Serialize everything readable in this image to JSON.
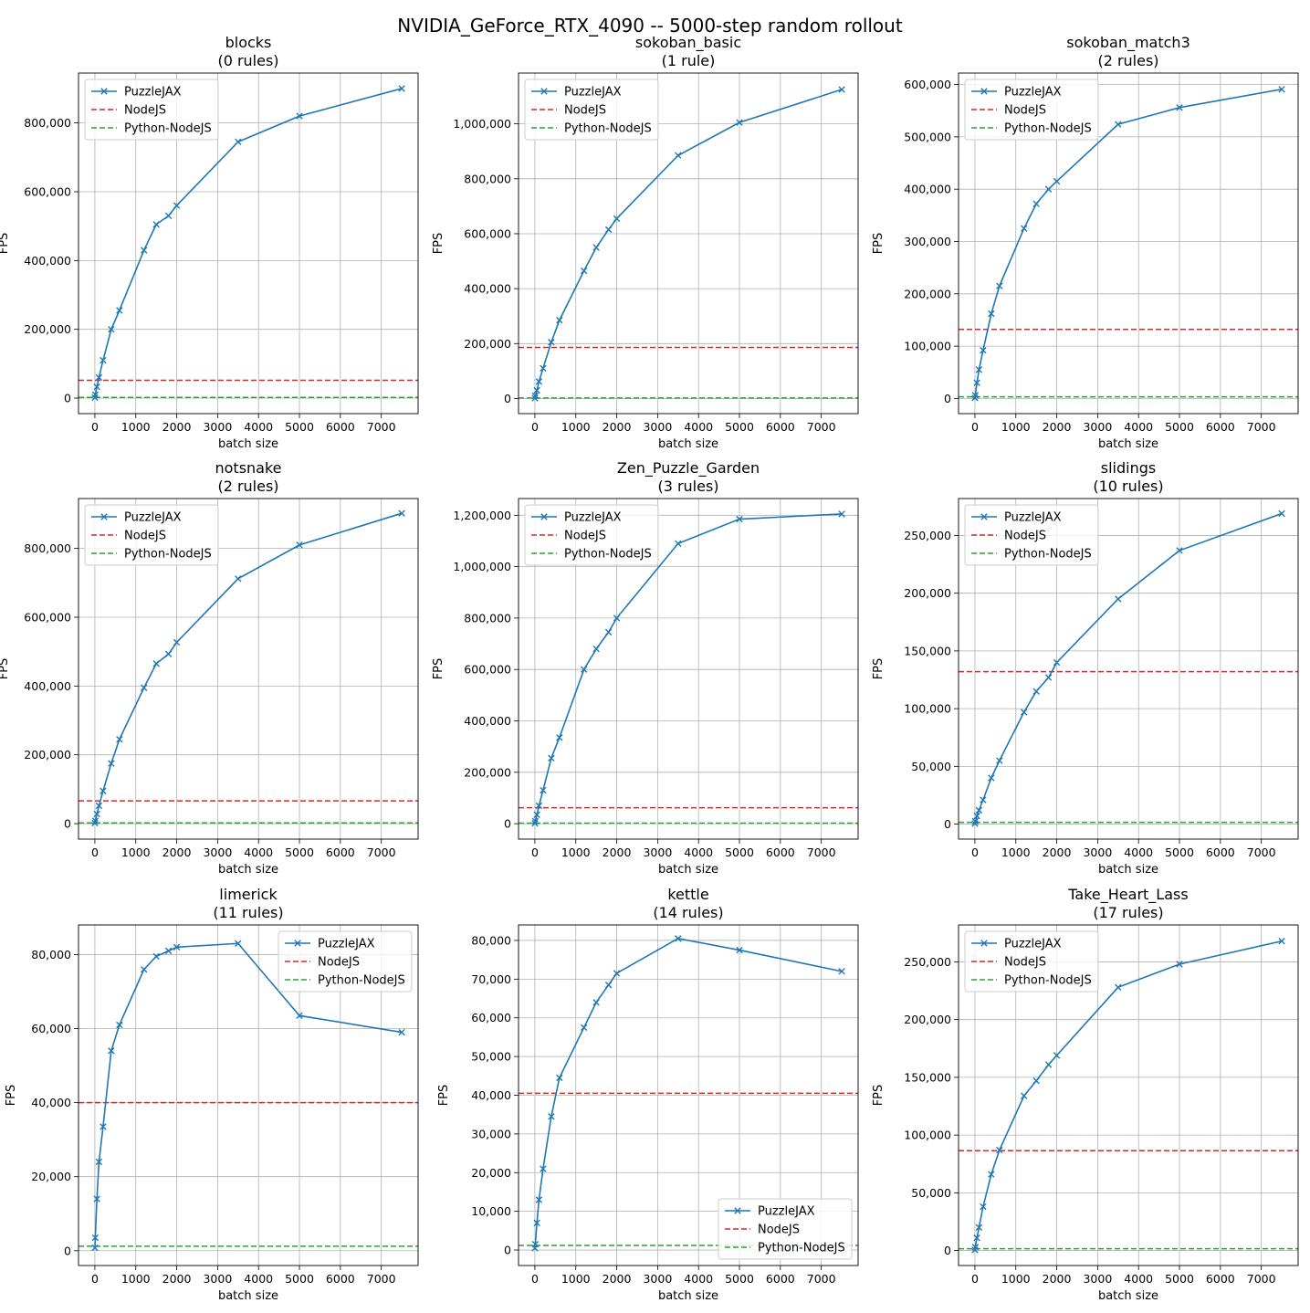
{
  "suptitle": "NVIDIA_GeForce_RTX_4090 -- 5000-step random rollout",
  "colors": {
    "puzzlejax": "#1f77b4",
    "nodejs": "#d62728",
    "python_nodejs": "#2ca02c",
    "grid": "#b0b0b0"
  },
  "chart_data": [
    {
      "type": "line",
      "title": "blocks",
      "subtitle": "(0 rules)",
      "xlabel": "batch size",
      "ylabel": "FPS",
      "xlim": [
        -400,
        7900
      ],
      "xticks": [
        0,
        1000,
        2000,
        3000,
        4000,
        5000,
        6000,
        7000
      ],
      "xtick_labels": [
        "0",
        "1000",
        "2000",
        "3000",
        "4000",
        "5000",
        "6000",
        "7000"
      ],
      "ylim": [
        -45000,
        945000
      ],
      "yticks": [
        0,
        200000,
        400000,
        600000,
        800000
      ],
      "ytick_labels": [
        "0",
        "200,000",
        "400,000",
        "600,000",
        "800,000"
      ],
      "legend": {
        "placement": "top-left",
        "entries": [
          "PuzzleJAX",
          "NodeJS",
          "Python-NodeJS"
        ]
      },
      "x": [
        1,
        10,
        50,
        100,
        200,
        400,
        600,
        1200,
        1500,
        1800,
        2000,
        3500,
        5000,
        7500
      ],
      "series": [
        {
          "name": "PuzzleJAX",
          "style": "line-x",
          "values": [
            1500,
            10000,
            33000,
            60000,
            110000,
            200000,
            255000,
            430000,
            505000,
            530000,
            560000,
            745000,
            820000,
            900000
          ]
        },
        {
          "name": "NodeJS",
          "style": "hline-dashed",
          "value": 52000
        },
        {
          "name": "Python-NodeJS",
          "style": "hline-dashed",
          "value": 2000
        }
      ]
    },
    {
      "type": "line",
      "title": "sokoban_basic",
      "subtitle": "(1 rule)",
      "xlabel": "batch size",
      "ylabel": "FPS",
      "xlim": [
        -400,
        7900
      ],
      "xticks": [
        0,
        1000,
        2000,
        3000,
        4000,
        5000,
        6000,
        7000
      ],
      "xtick_labels": [
        "0",
        "1000",
        "2000",
        "3000",
        "4000",
        "5000",
        "6000",
        "7000"
      ],
      "ylim": [
        -55000,
        1185000
      ],
      "yticks": [
        0,
        200000,
        400000,
        600000,
        800000,
        1000000
      ],
      "ytick_labels": [
        "0",
        "200,000",
        "400,000",
        "600,000",
        "800,000",
        "1,000,000"
      ],
      "legend": {
        "placement": "top-left",
        "entries": [
          "PuzzleJAX",
          "NodeJS",
          "Python-NodeJS"
        ]
      },
      "x": [
        1,
        10,
        50,
        100,
        200,
        400,
        600,
        1200,
        1500,
        1800,
        2000,
        3500,
        5000,
        7500
      ],
      "series": [
        {
          "name": "PuzzleJAX",
          "style": "line-x",
          "values": [
            1500,
            10000,
            30000,
            62000,
            110000,
            205000,
            285000,
            465000,
            550000,
            615000,
            655000,
            885000,
            1005000,
            1125000
          ]
        },
        {
          "name": "NodeJS",
          "style": "hline-dashed",
          "value": 186000
        },
        {
          "name": "Python-NodeJS",
          "style": "hline-dashed",
          "value": 2000
        }
      ]
    },
    {
      "type": "line",
      "title": "sokoban_match3",
      "subtitle": "(2 rules)",
      "xlabel": "batch size",
      "ylabel": "FPS",
      "xlim": [
        -400,
        7900
      ],
      "xticks": [
        0,
        1000,
        2000,
        3000,
        4000,
        5000,
        6000,
        7000
      ],
      "xtick_labels": [
        "0",
        "1000",
        "2000",
        "3000",
        "4000",
        "5000",
        "6000",
        "7000"
      ],
      "ylim": [
        -29000,
        622000
      ],
      "yticks": [
        0,
        100000,
        200000,
        300000,
        400000,
        500000,
        600000
      ],
      "ytick_labels": [
        "0",
        "100,000",
        "200,000",
        "300,000",
        "400,000",
        "500,000",
        "600,000"
      ],
      "legend": {
        "placement": "top-left",
        "entries": [
          "PuzzleJAX",
          "NodeJS",
          "Python-NodeJS"
        ]
      },
      "x": [
        1,
        10,
        50,
        100,
        200,
        400,
        600,
        1200,
        1500,
        1800,
        2000,
        3500,
        5000,
        7500
      ],
      "series": [
        {
          "name": "PuzzleJAX",
          "style": "line-x",
          "values": [
            1000,
            6000,
            30000,
            55000,
            92000,
            162000,
            215000,
            325000,
            372000,
            400000,
            415000,
            524000,
            556000,
            591000
          ]
        },
        {
          "name": "NodeJS",
          "style": "hline-dashed",
          "value": 132000
        },
        {
          "name": "Python-NodeJS",
          "style": "hline-dashed",
          "value": 3000
        }
      ]
    },
    {
      "type": "line",
      "title": "notsnake",
      "subtitle": "(2 rules)",
      "xlabel": "batch size",
      "ylabel": "FPS",
      "xlim": [
        -400,
        7900
      ],
      "xticks": [
        0,
        1000,
        2000,
        3000,
        4000,
        5000,
        6000,
        7000
      ],
      "xtick_labels": [
        "0",
        "1000",
        "2000",
        "3000",
        "4000",
        "5000",
        "6000",
        "7000"
      ],
      "ylim": [
        -45000,
        945000
      ],
      "yticks": [
        0,
        200000,
        400000,
        600000,
        800000
      ],
      "ytick_labels": [
        "0",
        "200,000",
        "400,000",
        "600,000",
        "800,000"
      ],
      "legend": {
        "placement": "top-left",
        "entries": [
          "PuzzleJAX",
          "NodeJS",
          "Python-NodeJS"
        ]
      },
      "x": [
        1,
        10,
        50,
        100,
        200,
        400,
        600,
        1200,
        1500,
        1800,
        2000,
        3500,
        5000,
        7500
      ],
      "series": [
        {
          "name": "PuzzleJAX",
          "style": "line-x",
          "values": [
            1500,
            8000,
            28000,
            52000,
            95000,
            175000,
            245000,
            395000,
            465000,
            493000,
            527000,
            712000,
            810000,
            902000
          ]
        },
        {
          "name": "NodeJS",
          "style": "hline-dashed",
          "value": 66000
        },
        {
          "name": "Python-NodeJS",
          "style": "hline-dashed",
          "value": 2000
        }
      ]
    },
    {
      "type": "line",
      "title": "Zen_Puzzle_Garden",
      "subtitle": "(3 rules)",
      "xlabel": "batch size",
      "ylabel": "FPS",
      "xlim": [
        -400,
        7900
      ],
      "xticks": [
        0,
        1000,
        2000,
        3000,
        4000,
        5000,
        6000,
        7000
      ],
      "xtick_labels": [
        "0",
        "1000",
        "2000",
        "3000",
        "4000",
        "5000",
        "6000",
        "7000"
      ],
      "ylim": [
        -60000,
        1265000
      ],
      "yticks": [
        0,
        200000,
        400000,
        600000,
        800000,
        1000000,
        1200000
      ],
      "ytick_labels": [
        "0",
        "200,000",
        "400,000",
        "600,000",
        "800,000",
        "1,000,000",
        "1,200,000"
      ],
      "legend": {
        "placement": "top-left",
        "entries": [
          "PuzzleJAX",
          "NodeJS",
          "Python-NodeJS"
        ]
      },
      "x": [
        1,
        10,
        50,
        100,
        200,
        400,
        600,
        1200,
        1500,
        1800,
        2000,
        3500,
        5000,
        7500
      ],
      "series": [
        {
          "name": "PuzzleJAX",
          "style": "line-x",
          "values": [
            1500,
            10000,
            35000,
            70000,
            130000,
            255000,
            335000,
            600000,
            680000,
            745000,
            800000,
            1090000,
            1185000,
            1205000
          ]
        },
        {
          "name": "NodeJS",
          "style": "hline-dashed",
          "value": 62000
        },
        {
          "name": "Python-NodeJS",
          "style": "hline-dashed",
          "value": 2000
        }
      ]
    },
    {
      "type": "line",
      "title": "slidings",
      "subtitle": "(10 rules)",
      "xlabel": "batch size",
      "ylabel": "FPS",
      "xlim": [
        -400,
        7900
      ],
      "xticks": [
        0,
        1000,
        2000,
        3000,
        4000,
        5000,
        6000,
        7000
      ],
      "xtick_labels": [
        "0",
        "1000",
        "2000",
        "3000",
        "4000",
        "5000",
        "6000",
        "7000"
      ],
      "ylim": [
        -13000,
        282000
      ],
      "yticks": [
        0,
        50000,
        100000,
        150000,
        200000,
        250000
      ],
      "ytick_labels": [
        "0",
        "50,000",
        "100,000",
        "150,000",
        "200,000",
        "250,000"
      ],
      "legend": {
        "placement": "top-left",
        "entries": [
          "PuzzleJAX",
          "NodeJS",
          "Python-NodeJS"
        ]
      },
      "x": [
        1,
        10,
        50,
        100,
        200,
        400,
        600,
        1200,
        1500,
        1800,
        2000,
        3500,
        5000,
        7500
      ],
      "series": [
        {
          "name": "PuzzleJAX",
          "style": "line-x",
          "values": [
            500,
            2500,
            7000,
            12000,
            21000,
            40000,
            55000,
            97000,
            115000,
            127000,
            140000,
            195000,
            237000,
            269000
          ]
        },
        {
          "name": "NodeJS",
          "style": "hline-dashed",
          "value": 132000
        },
        {
          "name": "Python-NodeJS",
          "style": "hline-dashed",
          "value": 1500
        }
      ]
    },
    {
      "type": "line",
      "title": "limerick",
      "subtitle": "(11 rules)",
      "xlabel": "batch size",
      "ylabel": "FPS",
      "xlim": [
        -400,
        7900
      ],
      "xticks": [
        0,
        1000,
        2000,
        3000,
        4000,
        5000,
        6000,
        7000
      ],
      "xtick_labels": [
        "0",
        "1000",
        "2000",
        "3000",
        "4000",
        "5000",
        "6000",
        "7000"
      ],
      "ylim": [
        -4000,
        88000
      ],
      "yticks": [
        0,
        20000,
        40000,
        60000,
        80000
      ],
      "ytick_labels": [
        "0",
        "20,000",
        "40,000",
        "60,000",
        "80,000"
      ],
      "legend": {
        "placement": "top-right",
        "entries": [
          "PuzzleJAX",
          "NodeJS",
          "Python-NodeJS"
        ]
      },
      "x": [
        1,
        10,
        50,
        100,
        200,
        400,
        600,
        1200,
        1500,
        1800,
        2000,
        3500,
        5000,
        7500
      ],
      "series": [
        {
          "name": "PuzzleJAX",
          "style": "line-x",
          "values": [
            800,
            3500,
            14000,
            24000,
            33500,
            54000,
            61000,
            76000,
            79500,
            81000,
            82000,
            83000,
            63500,
            59000
          ]
        },
        {
          "name": "NodeJS",
          "style": "hline-dashed",
          "value": 40000
        },
        {
          "name": "Python-NodeJS",
          "style": "hline-dashed",
          "value": 1200
        }
      ]
    },
    {
      "type": "line",
      "title": "kettle",
      "subtitle": "(14 rules)",
      "xlabel": "batch size",
      "ylabel": "FPS",
      "xlim": [
        -400,
        7900
      ],
      "xticks": [
        0,
        1000,
        2000,
        3000,
        4000,
        5000,
        6000,
        7000
      ],
      "xtick_labels": [
        "0",
        "1000",
        "2000",
        "3000",
        "4000",
        "5000",
        "6000",
        "7000"
      ],
      "ylim": [
        -4000,
        84000
      ],
      "yticks": [
        0,
        10000,
        20000,
        30000,
        40000,
        50000,
        60000,
        70000,
        80000
      ],
      "ytick_labels": [
        "0",
        "10,000",
        "20,000",
        "30,000",
        "40,000",
        "50,000",
        "60,000",
        "70,000",
        "80,000"
      ],
      "legend": {
        "placement": "bottom-right",
        "entries": [
          "PuzzleJAX",
          "NodeJS",
          "Python-NodeJS"
        ]
      },
      "x": [
        1,
        10,
        50,
        100,
        200,
        400,
        600,
        1200,
        1500,
        1800,
        2000,
        3500,
        5000,
        7500
      ],
      "series": [
        {
          "name": "PuzzleJAX",
          "style": "line-x",
          "values": [
            500,
            1500,
            7000,
            13000,
            21000,
            34500,
            44500,
            57500,
            64000,
            68500,
            71500,
            80500,
            77500,
            72000
          ]
        },
        {
          "name": "NodeJS",
          "style": "hline-dashed",
          "value": 40500
        },
        {
          "name": "Python-NodeJS",
          "style": "hline-dashed",
          "value": 1200
        }
      ]
    },
    {
      "type": "line",
      "title": "Take_Heart_Lass",
      "subtitle": "(17 rules)",
      "xlabel": "batch size",
      "ylabel": "FPS",
      "xlim": [
        -400,
        7900
      ],
      "xticks": [
        0,
        1000,
        2000,
        3000,
        4000,
        5000,
        6000,
        7000
      ],
      "xtick_labels": [
        "0",
        "1000",
        "2000",
        "3000",
        "4000",
        "5000",
        "6000",
        "7000"
      ],
      "ylim": [
        -13000,
        282000
      ],
      "yticks": [
        0,
        50000,
        100000,
        150000,
        200000,
        250000
      ],
      "ytick_labels": [
        "0",
        "50,000",
        "100,000",
        "150,000",
        "200,000",
        "250,000"
      ],
      "legend": {
        "placement": "top-left",
        "entries": [
          "PuzzleJAX",
          "NodeJS",
          "Python-NodeJS"
        ]
      },
      "x": [
        1,
        10,
        50,
        100,
        200,
        400,
        600,
        1200,
        1500,
        1800,
        2000,
        3500,
        5000,
        7500
      ],
      "series": [
        {
          "name": "PuzzleJAX",
          "style": "line-x",
          "values": [
            500,
            3000,
            11000,
            20000,
            38000,
            66000,
            87000,
            134000,
            147000,
            161000,
            169000,
            228000,
            248000,
            268000
          ]
        },
        {
          "name": "NodeJS",
          "style": "hline-dashed",
          "value": 86500
        },
        {
          "name": "Python-NodeJS",
          "style": "hline-dashed",
          "value": 1500
        }
      ]
    }
  ]
}
